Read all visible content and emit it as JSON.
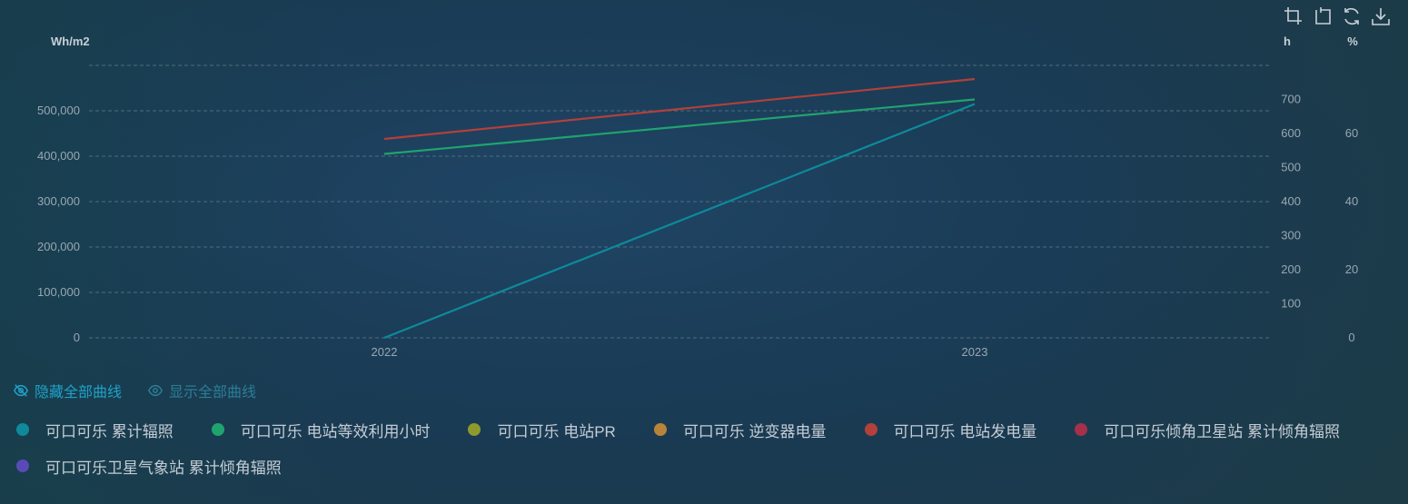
{
  "toolbox": {
    "icons": [
      "crop-icon",
      "undo-icon",
      "refresh-icon",
      "download-icon"
    ]
  },
  "controls": {
    "hide_all": "隐藏全部曲线",
    "show_all": "显示全部曲线"
  },
  "colors": {
    "teal": "#0e8a9a",
    "green": "#20a36f",
    "olive": "#8e9a2e",
    "orange": "#b8843a",
    "red": "#b3403a",
    "crimson": "#a6304a",
    "purple": "#5a4ab8",
    "grid": "#4d6d80",
    "accent": "#1ea3c9"
  },
  "chart_data": {
    "type": "line",
    "x": [
      "2022",
      "2023"
    ],
    "axes": {
      "left": {
        "unit": "Wh/m2",
        "ylim": [
          0,
          600000
        ],
        "ticks": [
          0,
          100000,
          200000,
          300000,
          400000,
          500000
        ],
        "tick_labels": [
          "0",
          "100,000",
          "200,000",
          "300,000",
          "400,000",
          "500,000"
        ]
      },
      "right_h": {
        "unit": "h",
        "ylim": [
          0,
          800
        ],
        "ticks": [
          100,
          200,
          300,
          400,
          500,
          600,
          700
        ],
        "tick_labels": [
          "100",
          "200",
          "300",
          "400",
          "500",
          "600",
          "700"
        ]
      },
      "right_pct": {
        "unit": "%",
        "ylim": [
          0,
          80
        ],
        "ticks": [
          0,
          20,
          40,
          60
        ],
        "tick_labels": [
          "0",
          "20",
          "40",
          "60"
        ]
      }
    },
    "grid": true,
    "legend_position": "bottom",
    "series": [
      {
        "name": "可口可乐 累计辐照",
        "color": "#0e8a9a",
        "axis": "left",
        "values": [
          0,
          515000
        ],
        "visible": true
      },
      {
        "name": "可口可乐 电站等效利用小时",
        "color": "#20a36f",
        "axis": "right_h",
        "values": [
          540,
          700
        ],
        "visible": true
      },
      {
        "name": "可口可乐 电站PR",
        "color": "#8e9a2e",
        "axis": "right_pct",
        "values": null,
        "visible": false
      },
      {
        "name": "可口可乐 逆变器电量",
        "color": "#b8843a",
        "axis": "left",
        "values": null,
        "visible": false
      },
      {
        "name": "可口可乐 电站发电量",
        "color": "#b3403a",
        "axis": "left",
        "values": [
          438000,
          570000
        ],
        "visible": true
      },
      {
        "name": "可口可乐倾角卫星站 累计倾角辐照",
        "color": "#a6304a",
        "axis": "left",
        "values": null,
        "visible": false
      },
      {
        "name": "可口可乐卫星气象站 累计倾角辐照",
        "color": "#5a4ab8",
        "axis": "left",
        "values": null,
        "visible": false
      }
    ]
  }
}
